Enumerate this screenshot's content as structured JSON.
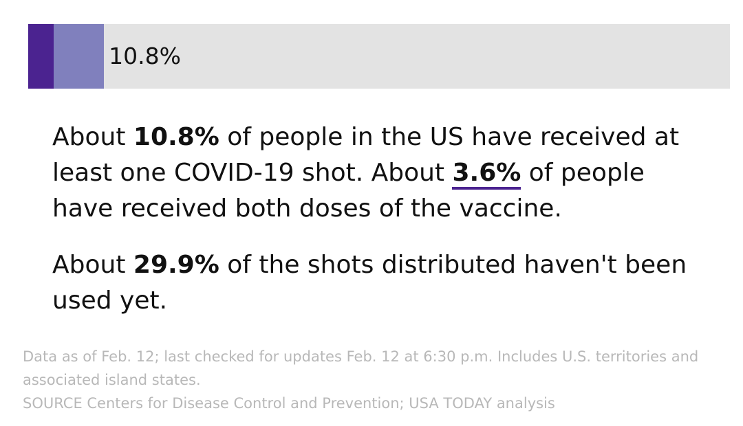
{
  "chart_data": {
    "type": "progress",
    "xlim": [
      0,
      100
    ],
    "track_color": "#e3e3e3",
    "series": [
      {
        "color": "#8080bd",
        "values": [
          10.8
        ],
        "value_labels": [
          "10.8%"
        ]
      },
      {
        "color": "#4b2390",
        "values": [
          3.6
        ]
      }
    ]
  },
  "text": {
    "paragraphs": [
      [
        "About ",
        "10.8%",
        " of people in the US have received at least one COVID-19 shot. About ",
        "3.6%",
        " of people have received both doses of the vaccine."
      ],
      [
        "About ",
        "29.9%",
        " of the shots distributed haven't been used yet."
      ]
    ]
  },
  "footer": {
    "note": "Data as of Feb. 12; last checked for updates Feb. 12 at 6:30 p.m. Includes U.S. territories and associated island states.",
    "source": "SOURCE Centers for Disease Control and Prevention; USA TODAY analysis"
  }
}
